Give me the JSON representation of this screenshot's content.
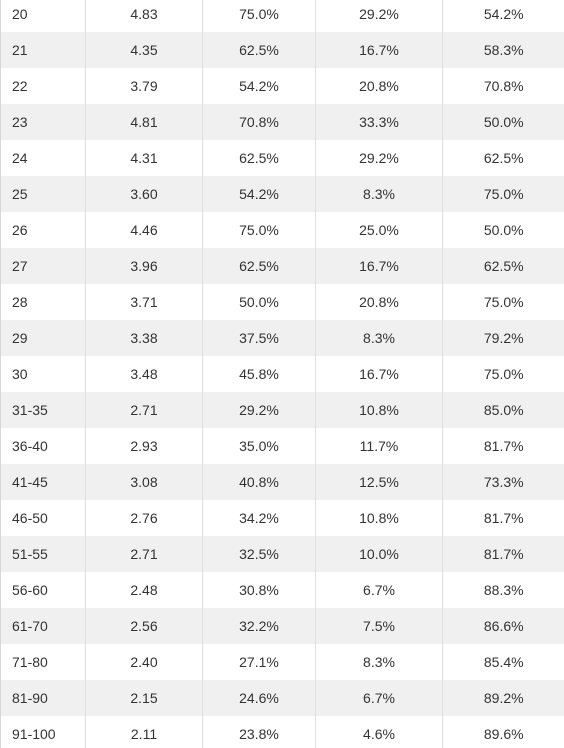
{
  "table": {
    "rows": [
      {
        "label": "20",
        "c1": "4.83",
        "c2": "75.0%",
        "c3": "29.2%",
        "c4": "54.2%"
      },
      {
        "label": "21",
        "c1": "4.35",
        "c2": "62.5%",
        "c3": "16.7%",
        "c4": "58.3%"
      },
      {
        "label": "22",
        "c1": "3.79",
        "c2": "54.2%",
        "c3": "20.8%",
        "c4": "70.8%"
      },
      {
        "label": "23",
        "c1": "4.81",
        "c2": "70.8%",
        "c3": "33.3%",
        "c4": "50.0%"
      },
      {
        "label": "24",
        "c1": "4.31",
        "c2": "62.5%",
        "c3": "29.2%",
        "c4": "62.5%"
      },
      {
        "label": "25",
        "c1": "3.60",
        "c2": "54.2%",
        "c3": "8.3%",
        "c4": "75.0%"
      },
      {
        "label": "26",
        "c1": "4.46",
        "c2": "75.0%",
        "c3": "25.0%",
        "c4": "50.0%"
      },
      {
        "label": "27",
        "c1": "3.96",
        "c2": "62.5%",
        "c3": "16.7%",
        "c4": "62.5%"
      },
      {
        "label": "28",
        "c1": "3.71",
        "c2": "50.0%",
        "c3": "20.8%",
        "c4": "75.0%"
      },
      {
        "label": "29",
        "c1": "3.38",
        "c2": "37.5%",
        "c3": "8.3%",
        "c4": "79.2%"
      },
      {
        "label": "30",
        "c1": "3.48",
        "c2": "45.8%",
        "c3": "16.7%",
        "c4": "75.0%"
      },
      {
        "label": "31-35",
        "c1": "2.71",
        "c2": "29.2%",
        "c3": "10.8%",
        "c4": "85.0%"
      },
      {
        "label": "36-40",
        "c1": "2.93",
        "c2": "35.0%",
        "c3": "11.7%",
        "c4": "81.7%"
      },
      {
        "label": "41-45",
        "c1": "3.08",
        "c2": "40.8%",
        "c3": "12.5%",
        "c4": "73.3%"
      },
      {
        "label": "46-50",
        "c1": "2.76",
        "c2": "34.2%",
        "c3": "10.8%",
        "c4": "81.7%"
      },
      {
        "label": "51-55",
        "c1": "2.71",
        "c2": "32.5%",
        "c3": "10.0%",
        "c4": "81.7%"
      },
      {
        "label": "56-60",
        "c1": "2.48",
        "c2": "30.8%",
        "c3": "6.7%",
        "c4": "88.3%"
      },
      {
        "label": "61-70",
        "c1": "2.56",
        "c2": "32.2%",
        "c3": "7.5%",
        "c4": "86.6%"
      },
      {
        "label": "71-80",
        "c1": "2.40",
        "c2": "27.1%",
        "c3": "8.3%",
        "c4": "85.4%"
      },
      {
        "label": "81-90",
        "c1": "2.15",
        "c2": "24.6%",
        "c3": "6.7%",
        "c4": "89.2%"
      },
      {
        "label": "91-100",
        "c1": "2.11",
        "c2": "23.8%",
        "c3": "4.6%",
        "c4": "89.6%"
      }
    ]
  },
  "colors": {
    "text": "#333333",
    "row_shade": "#f0f0f0",
    "grid_line": "#e0e0e0",
    "background": "#ffffff"
  }
}
